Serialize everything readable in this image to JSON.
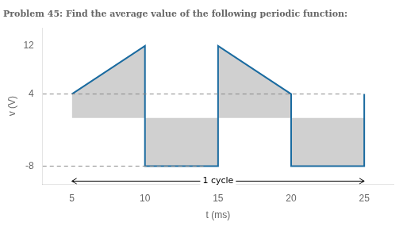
{
  "chart_data": {
    "type": "line",
    "title": "Problem 45: Find the average value of the following periodic function:",
    "x_label": "t (ms)",
    "y_label": "v (V)",
    "x": [
      5,
      10,
      10,
      15,
      15,
      20,
      20,
      25,
      25
    ],
    "values": [
      4,
      12,
      -8,
      -8,
      12,
      4,
      -8,
      -8,
      4
    ],
    "color": "#1a6ba0",
    "fill_color": "#d0d0d0",
    "xlim": [
      3,
      27
    ],
    "ylim": [
      -11,
      15
    ],
    "xticks": [
      5,
      10,
      15,
      20,
      25
    ],
    "yticks": [
      -8,
      4,
      12
    ],
    "grid": false,
    "dashed_lines": [
      {
        "y": 4,
        "x_from": 3,
        "x_to": 25,
        "color": "#888888",
        "line_style": "dashed"
      },
      {
        "y": -8,
        "x_from": 3,
        "x_to": 14,
        "color": "#888888",
        "line_style": "dashed"
      }
    ],
    "annotations": [
      {
        "text": "1 cycle",
        "x_from": 5,
        "x_to": 25,
        "y": -10.5
      }
    ]
  }
}
